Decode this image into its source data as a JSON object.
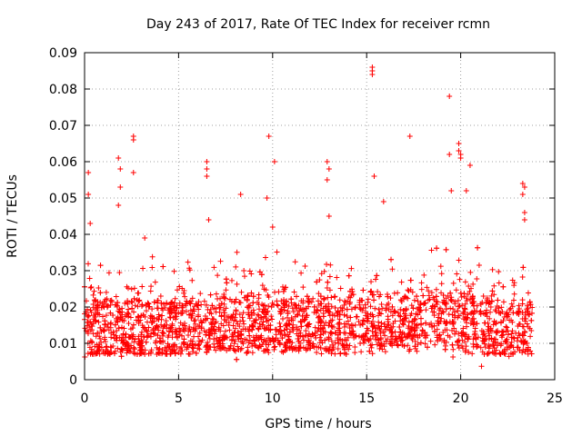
{
  "chart_data": {
    "type": "scatter",
    "title": "Day 243 of 2017, Rate Of TEC Index for receiver rcmn",
    "xlabel": "GPS time / hours",
    "ylabel": "ROTI / TECUs",
    "xlim": [
      0,
      25
    ],
    "ylim": [
      0,
      0.09
    ],
    "xticks": [
      0,
      5,
      10,
      15,
      20,
      25
    ],
    "xtick_labels": [
      "0",
      "5",
      "10",
      "15",
      "20",
      "25"
    ],
    "yticks": [
      0,
      0.01,
      0.02,
      0.03,
      0.04,
      0.05,
      0.06,
      0.07,
      0.08,
      0.09
    ],
    "ytick_labels": [
      "0",
      "0.01",
      "0.02",
      "0.03",
      "0.04",
      "0.05",
      "0.06",
      "0.07",
      "0.08",
      "0.09"
    ],
    "grid": true,
    "marker": "+",
    "color": "#ff0000",
    "series": [
      {
        "name": "ROTI",
        "x_range": [
          0,
          23.8
        ],
        "baseline_band": [
          0.007,
          0.022
        ],
        "notable_points": [
          {
            "x": 0.2,
            "y": 0.057
          },
          {
            "x": 0.2,
            "y": 0.051
          },
          {
            "x": 0.3,
            "y": 0.043
          },
          {
            "x": 1.8,
            "y": 0.061
          },
          {
            "x": 1.9,
            "y": 0.058
          },
          {
            "x": 1.9,
            "y": 0.053
          },
          {
            "x": 1.8,
            "y": 0.048
          },
          {
            "x": 2.6,
            "y": 0.067
          },
          {
            "x": 2.6,
            "y": 0.066
          },
          {
            "x": 2.6,
            "y": 0.057
          },
          {
            "x": 3.2,
            "y": 0.039
          },
          {
            "x": 6.5,
            "y": 0.06
          },
          {
            "x": 6.5,
            "y": 0.058
          },
          {
            "x": 6.5,
            "y": 0.056
          },
          {
            "x": 6.6,
            "y": 0.044
          },
          {
            "x": 8.3,
            "y": 0.051
          },
          {
            "x": 9.8,
            "y": 0.067
          },
          {
            "x": 9.7,
            "y": 0.05
          },
          {
            "x": 10.1,
            "y": 0.06
          },
          {
            "x": 10.0,
            "y": 0.042
          },
          {
            "x": 12.9,
            "y": 0.06
          },
          {
            "x": 13.0,
            "y": 0.058
          },
          {
            "x": 12.9,
            "y": 0.055
          },
          {
            "x": 13.0,
            "y": 0.045
          },
          {
            "x": 15.3,
            "y": 0.086
          },
          {
            "x": 15.3,
            "y": 0.085
          },
          {
            "x": 15.3,
            "y": 0.084
          },
          {
            "x": 15.4,
            "y": 0.056
          },
          {
            "x": 15.9,
            "y": 0.049
          },
          {
            "x": 17.3,
            "y": 0.067
          },
          {
            "x": 19.4,
            "y": 0.078
          },
          {
            "x": 19.4,
            "y": 0.062
          },
          {
            "x": 19.9,
            "y": 0.065
          },
          {
            "x": 19.9,
            "y": 0.063
          },
          {
            "x": 20.0,
            "y": 0.062
          },
          {
            "x": 20.0,
            "y": 0.061
          },
          {
            "x": 20.5,
            "y": 0.059
          },
          {
            "x": 19.5,
            "y": 0.052
          },
          {
            "x": 20.3,
            "y": 0.052
          },
          {
            "x": 23.3,
            "y": 0.054
          },
          {
            "x": 23.4,
            "y": 0.053
          },
          {
            "x": 23.3,
            "y": 0.051
          },
          {
            "x": 23.4,
            "y": 0.046
          },
          {
            "x": 23.4,
            "y": 0.044
          }
        ]
      }
    ]
  }
}
